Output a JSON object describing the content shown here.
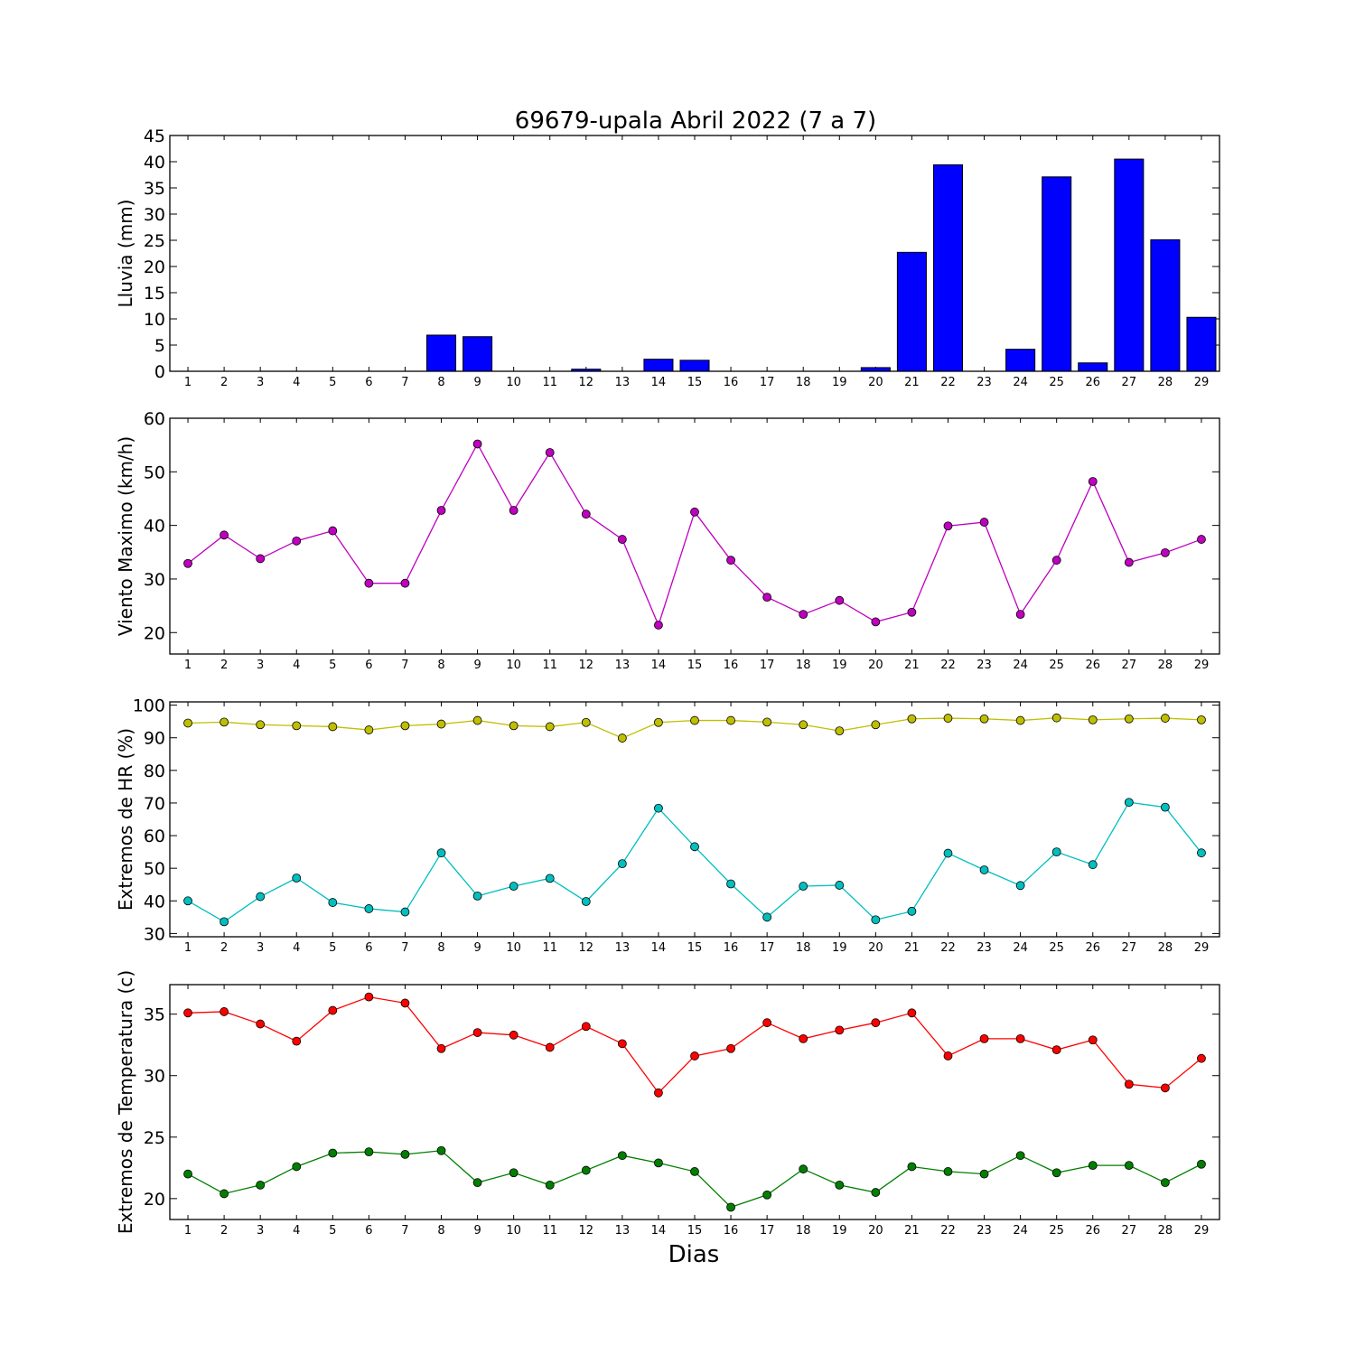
{
  "figure": {
    "title": "69679-upala Abril 2022  (7 a 7)",
    "xlabel": "Dias"
  },
  "chart_data": [
    {
      "type": "bar",
      "ylabel": "Lluvia (mm)",
      "ylim": [
        0,
        45
      ],
      "yticks": [
        0,
        5,
        10,
        15,
        20,
        25,
        30,
        35,
        40,
        45
      ],
      "x": [
        1,
        2,
        3,
        4,
        5,
        6,
        7,
        8,
        9,
        10,
        11,
        12,
        13,
        14,
        15,
        16,
        17,
        18,
        19,
        20,
        21,
        22,
        23,
        24,
        25,
        26,
        27,
        28,
        29
      ],
      "values": [
        0,
        0,
        0,
        0,
        0,
        0,
        0,
        6.9,
        6.6,
        0,
        0,
        0.4,
        0,
        2.3,
        2.1,
        0,
        0,
        0,
        0,
        0.7,
        22.7,
        39.4,
        0,
        4.2,
        37.1,
        1.6,
        40.5,
        25.1,
        10.3
      ],
      "color": "#0000ff"
    },
    {
      "type": "line",
      "ylabel": "Viento Maximo (km/h)",
      "ylim": [
        16,
        60
      ],
      "yticks": [
        20,
        30,
        40,
        50,
        60
      ],
      "x": [
        1,
        2,
        3,
        4,
        5,
        6,
        7,
        8,
        9,
        10,
        11,
        12,
        13,
        14,
        15,
        16,
        17,
        18,
        19,
        20,
        21,
        22,
        23,
        24,
        25,
        26,
        27,
        28,
        29
      ],
      "series": [
        {
          "values": [
            32.9,
            38.2,
            33.8,
            37.1,
            39.0,
            29.2,
            29.2,
            42.8,
            55.2,
            42.8,
            53.6,
            42.1,
            37.4,
            21.4,
            42.5,
            33.5,
            26.6,
            23.4,
            26.0,
            22.0,
            23.8,
            39.9,
            40.6,
            23.4,
            33.5,
            48.2,
            33.1,
            34.9,
            37.4
          ],
          "color": "#bf00bf"
        }
      ]
    },
    {
      "type": "line",
      "ylabel": "Extremos de HR (%)",
      "ylim": [
        29,
        101
      ],
      "yticks": [
        30,
        40,
        50,
        60,
        70,
        80,
        90,
        100
      ],
      "x": [
        1,
        2,
        3,
        4,
        5,
        6,
        7,
        8,
        9,
        10,
        11,
        12,
        13,
        14,
        15,
        16,
        17,
        18,
        19,
        20,
        21,
        22,
        23,
        24,
        25,
        26,
        27,
        28,
        29
      ],
      "series": [
        {
          "values": [
            94.5,
            94.8,
            94.0,
            93.7,
            93.4,
            92.4,
            93.7,
            94.2,
            95.3,
            93.7,
            93.4,
            94.7,
            89.9,
            94.7,
            95.3,
            95.3,
            94.8,
            94.0,
            92.1,
            94.0,
            95.8,
            96.0,
            95.8,
            95.3,
            96.1,
            95.5,
            95.8,
            96.0,
            95.5
          ],
          "color": "#bfbf00"
        },
        {
          "values": [
            40.0,
            33.6,
            41.3,
            47.0,
            39.5,
            37.6,
            36.6,
            54.7,
            41.5,
            44.5,
            46.9,
            39.8,
            51.4,
            68.4,
            56.6,
            45.2,
            35.0,
            44.5,
            44.8,
            34.2,
            36.8,
            54.6,
            49.5,
            44.7,
            55.0,
            51.1,
            70.2,
            68.7,
            54.7
          ],
          "color": "#00bfbf"
        }
      ]
    },
    {
      "type": "line",
      "ylabel": "Extremos de Temperatura (c)",
      "ylim": [
        18.3,
        37.4
      ],
      "yticks": [
        20,
        25,
        30,
        35
      ],
      "x": [
        1,
        2,
        3,
        4,
        5,
        6,
        7,
        8,
        9,
        10,
        11,
        12,
        13,
        14,
        15,
        16,
        17,
        18,
        19,
        20,
        21,
        22,
        23,
        24,
        25,
        26,
        27,
        28,
        29
      ],
      "series": [
        {
          "values": [
            35.1,
            35.2,
            34.2,
            32.8,
            35.3,
            36.4,
            35.9,
            32.2,
            33.5,
            33.3,
            32.3,
            34.0,
            32.6,
            28.6,
            31.6,
            32.2,
            34.3,
            33.0,
            33.7,
            34.3,
            35.1,
            31.6,
            33.0,
            33.0,
            32.1,
            32.9,
            29.3,
            29.0,
            31.4
          ],
          "color": "#ff0000"
        },
        {
          "values": [
            22.0,
            20.4,
            21.1,
            22.6,
            23.7,
            23.8,
            23.6,
            23.9,
            21.3,
            22.1,
            21.1,
            22.3,
            23.5,
            22.9,
            22.2,
            19.3,
            20.3,
            22.4,
            21.1,
            20.5,
            22.6,
            22.2,
            22.0,
            23.5,
            22.1,
            22.7,
            22.7,
            21.3,
            22.8
          ],
          "color": "#007f00"
        }
      ]
    }
  ]
}
